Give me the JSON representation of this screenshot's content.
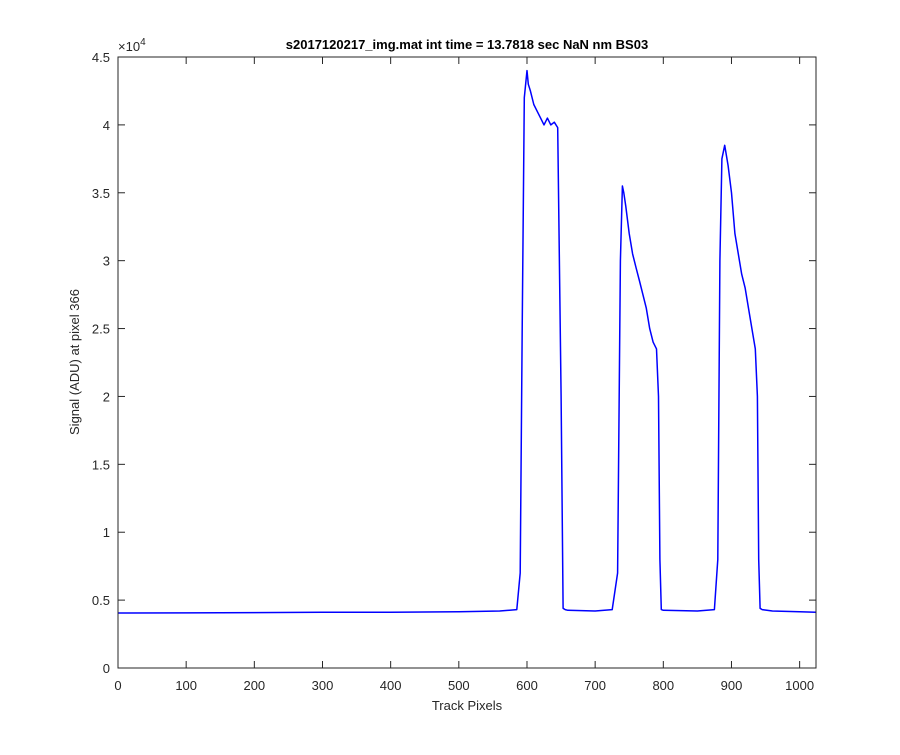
{
  "chart_data": {
    "type": "line",
    "title": "s2017120217_img.mat int time = 13.7818 sec  NaN nm BS03",
    "xlabel": "Track Pixels",
    "ylabel": "Signal (ADU) at pixel 366",
    "xlim": [
      0,
      1024
    ],
    "ylim": [
      0,
      45000
    ],
    "x_ticks": [
      0,
      100,
      200,
      300,
      400,
      500,
      600,
      700,
      800,
      900,
      1000
    ],
    "y_ticks": [
      0,
      5000,
      10000,
      15000,
      20000,
      25000,
      30000,
      35000,
      40000,
      45000
    ],
    "x_tick_labels": [
      "0",
      "100",
      "200",
      "300",
      "400",
      "500",
      "600",
      "700",
      "800",
      "900",
      "1000"
    ],
    "y_tick_labels": [
      "0",
      "0.5",
      "1",
      "1.5",
      "2",
      "2.5",
      "3",
      "3.5",
      "4",
      "4.5"
    ],
    "y_exponent_label": "×10",
    "y_exponent_power": "4",
    "grid": false,
    "line_color": "#0000ff",
    "series": [
      {
        "x": [
          0,
          100,
          200,
          300,
          400,
          500,
          560,
          585,
          590,
          593,
          596,
          600,
          602,
          605,
          610,
          615,
          620,
          625,
          630,
          635,
          640,
          645,
          650,
          653,
          656,
          660,
          700,
          725,
          733,
          737,
          740,
          742,
          745,
          750,
          755,
          760,
          765,
          770,
          775,
          780,
          785,
          790,
          793,
          795,
          797,
          800,
          850,
          875,
          880,
          883,
          886,
          890,
          895,
          900,
          905,
          910,
          915,
          920,
          925,
          930,
          935,
          938,
          940,
          942,
          945,
          960,
          1000,
          1024
        ],
        "y": [
          4050,
          4060,
          4080,
          4100,
          4110,
          4150,
          4200,
          4300,
          7000,
          25000,
          42000,
          44000,
          43000,
          42500,
          41500,
          41000,
          40500,
          40000,
          40500,
          40000,
          40200,
          39800,
          20000,
          4400,
          4300,
          4250,
          4200,
          4300,
          7000,
          30000,
          35500,
          35000,
          34000,
          32000,
          30500,
          29500,
          28500,
          27500,
          26500,
          25000,
          24000,
          23500,
          20000,
          8000,
          4300,
          4250,
          4200,
          4300,
          8000,
          30000,
          37500,
          38500,
          37000,
          35000,
          32000,
          30500,
          29000,
          28000,
          26500,
          25000,
          23500,
          20000,
          8000,
          4400,
          4300,
          4200,
          4150,
          4100
        ]
      }
    ]
  }
}
